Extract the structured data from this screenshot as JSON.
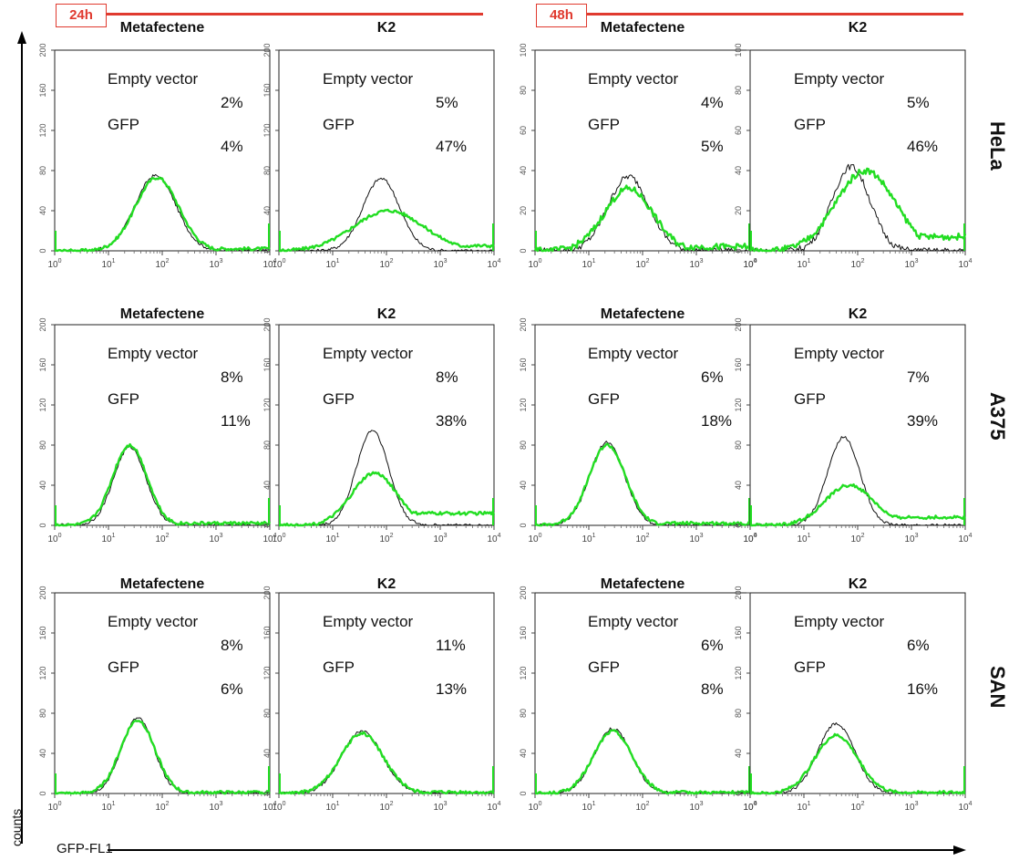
{
  "figure": {
    "time_labels": [
      "24h",
      "48h"
    ],
    "cell_lines": [
      "HeLa",
      "A375",
      "SAN"
    ],
    "y_axis_label": "counts",
    "x_axis_label": "GFP-FL1",
    "colors": {
      "gfp": "#22dd22",
      "empty": "#111111",
      "accent": "#e03a2f"
    }
  },
  "chart_data": [
    {
      "type": "line",
      "title": "Metafectene",
      "cell_line": "HeLa",
      "time": "24h",
      "xscale": "log",
      "xlim": [
        1,
        10000
      ],
      "ylim": [
        0,
        200
      ],
      "yticks": [
        0,
        40,
        80,
        120,
        160,
        200
      ],
      "series": [
        {
          "name": "Empty vector",
          "peak_x": 75,
          "peak_y": 75,
          "width": 0.38,
          "tail": 0
        },
        {
          "name": "GFP",
          "peak_x": 80,
          "peak_y": 73,
          "width": 0.4,
          "tail": 2
        }
      ],
      "labels": {
        "empty_vector": "Empty vector",
        "gfp": "GFP",
        "empty_pct": "2%",
        "gfp_pct": "4%"
      }
    },
    {
      "type": "line",
      "title": "K2",
      "cell_line": "HeLa",
      "time": "24h",
      "xscale": "log",
      "xlim": [
        1,
        10000
      ],
      "ylim": [
        0,
        200
      ],
      "yticks": [
        0,
        40,
        80,
        120,
        160,
        200
      ],
      "series": [
        {
          "name": "Empty vector",
          "peak_x": 80,
          "peak_y": 72,
          "width": 0.34,
          "tail": 0
        },
        {
          "name": "GFP",
          "peak_x": 110,
          "peak_y": 40,
          "width": 0.65,
          "tail": 5
        }
      ],
      "labels": {
        "empty_vector": "Empty vector",
        "gfp": "GFP",
        "empty_pct": "5%",
        "gfp_pct": "47%"
      }
    },
    {
      "type": "line",
      "title": "Metafectene",
      "cell_line": "HeLa",
      "time": "48h",
      "xscale": "log",
      "xlim": [
        1,
        10000
      ],
      "ylim": [
        0,
        100
      ],
      "yticks": [
        0,
        20,
        40,
        60,
        80,
        100
      ],
      "series": [
        {
          "name": "Empty vector",
          "peak_x": 55,
          "peak_y": 37,
          "width": 0.38,
          "tail": 0
        },
        {
          "name": "GFP",
          "peak_x": 55,
          "peak_y": 31,
          "width": 0.45,
          "tail": 2
        }
      ],
      "labels": {
        "empty_vector": "Empty vector",
        "gfp": "GFP",
        "empty_pct": "4%",
        "gfp_pct": "5%"
      }
    },
    {
      "type": "line",
      "title": "K2",
      "cell_line": "HeLa",
      "time": "48h",
      "xscale": "log",
      "xlim": [
        1,
        10000
      ],
      "ylim": [
        0,
        100
      ],
      "yticks": [
        0,
        20,
        40,
        60,
        80,
        100
      ],
      "series": [
        {
          "name": "Empty vector",
          "peak_x": 75,
          "peak_y": 42,
          "width": 0.35,
          "tail": 0
        },
        {
          "name": "GFP",
          "peak_x": 140,
          "peak_y": 40,
          "width": 0.55,
          "tail": 7
        }
      ],
      "labels": {
        "empty_vector": "Empty vector",
        "gfp": "GFP",
        "empty_pct": "5%",
        "gfp_pct": "46%"
      }
    },
    {
      "type": "line",
      "title": "Metafectene",
      "cell_line": "A375",
      "time": "24h",
      "xscale": "log",
      "xlim": [
        1,
        10000
      ],
      "ylim": [
        0,
        200
      ],
      "yticks": [
        0,
        40,
        80,
        120,
        160,
        200
      ],
      "series": [
        {
          "name": "Empty vector",
          "peak_x": 25,
          "peak_y": 78,
          "width": 0.3,
          "tail": 0
        },
        {
          "name": "GFP",
          "peak_x": 25,
          "peak_y": 80,
          "width": 0.32,
          "tail": 2
        }
      ],
      "labels": {
        "empty_vector": "Empty vector",
        "gfp": "GFP",
        "empty_pct": "8%",
        "gfp_pct": "11%"
      }
    },
    {
      "type": "line",
      "title": "K2",
      "cell_line": "A375",
      "time": "24h",
      "xscale": "log",
      "xlim": [
        1,
        10000
      ],
      "ylim": [
        0,
        200
      ],
      "yticks": [
        0,
        40,
        80,
        120,
        160,
        200
      ],
      "series": [
        {
          "name": "Empty vector",
          "peak_x": 55,
          "peak_y": 95,
          "width": 0.3,
          "tail": 0
        },
        {
          "name": "GFP",
          "peak_x": 60,
          "peak_y": 52,
          "width": 0.42,
          "tail": 12
        }
      ],
      "labels": {
        "empty_vector": "Empty vector",
        "gfp": "GFP",
        "empty_pct": "8%",
        "gfp_pct": "38%"
      }
    },
    {
      "type": "line",
      "title": "Metafectene",
      "cell_line": "A375",
      "time": "48h",
      "xscale": "log",
      "xlim": [
        1,
        10000
      ],
      "ylim": [
        0,
        200
      ],
      "yticks": [
        0,
        40,
        80,
        120,
        160,
        200
      ],
      "series": [
        {
          "name": "Empty vector",
          "peak_x": 22,
          "peak_y": 83,
          "width": 0.32,
          "tail": 0
        },
        {
          "name": "GFP",
          "peak_x": 22,
          "peak_y": 80,
          "width": 0.34,
          "tail": 2
        }
      ],
      "labels": {
        "empty_vector": "Empty vector",
        "gfp": "GFP",
        "empty_pct": "6%",
        "gfp_pct": "18%"
      }
    },
    {
      "type": "line",
      "title": "K2",
      "cell_line": "A375",
      "time": "48h",
      "xscale": "log",
      "xlim": [
        1,
        10000
      ],
      "ylim": [
        0,
        200
      ],
      "yticks": [
        0,
        40,
        80,
        120,
        160,
        200
      ],
      "series": [
        {
          "name": "Empty vector",
          "peak_x": 55,
          "peak_y": 88,
          "width": 0.3,
          "tail": 0
        },
        {
          "name": "GFP",
          "peak_x": 70,
          "peak_y": 40,
          "width": 0.45,
          "tail": 8
        }
      ],
      "labels": {
        "empty_vector": "Empty vector",
        "gfp": "GFP",
        "empty_pct": "7%",
        "gfp_pct": "39%"
      }
    },
    {
      "type": "line",
      "title": "Metafectene",
      "cell_line": "SAN",
      "time": "24h",
      "xscale": "log",
      "xlim": [
        1,
        10000
      ],
      "ylim": [
        0,
        200
      ],
      "yticks": [
        0,
        40,
        80,
        120,
        160,
        200
      ],
      "series": [
        {
          "name": "Empty vector",
          "peak_x": 35,
          "peak_y": 75,
          "width": 0.3,
          "tail": 0
        },
        {
          "name": "GFP",
          "peak_x": 35,
          "peak_y": 73,
          "width": 0.32,
          "tail": 1
        }
      ],
      "labels": {
        "empty_vector": "Empty vector",
        "gfp": "GFP",
        "empty_pct": "8%",
        "gfp_pct": "6%"
      }
    },
    {
      "type": "line",
      "title": "K2",
      "cell_line": "SAN",
      "time": "24h",
      "xscale": "log",
      "xlim": [
        1,
        10000
      ],
      "ylim": [
        0,
        200
      ],
      "yticks": [
        0,
        40,
        80,
        120,
        160,
        200
      ],
      "series": [
        {
          "name": "Empty vector",
          "peak_x": 35,
          "peak_y": 62,
          "width": 0.38,
          "tail": 0
        },
        {
          "name": "GFP",
          "peak_x": 35,
          "peak_y": 60,
          "width": 0.4,
          "tail": 1
        }
      ],
      "labels": {
        "empty_vector": "Empty vector",
        "gfp": "GFP",
        "empty_pct": "11%",
        "gfp_pct": "13%"
      }
    },
    {
      "type": "line",
      "title": "Metafectene",
      "cell_line": "SAN",
      "time": "48h",
      "xscale": "log",
      "xlim": [
        1,
        10000
      ],
      "ylim": [
        0,
        200
      ],
      "yticks": [
        0,
        40,
        80,
        120,
        160,
        200
      ],
      "series": [
        {
          "name": "Empty vector",
          "peak_x": 28,
          "peak_y": 65,
          "width": 0.34,
          "tail": 0
        },
        {
          "name": "GFP",
          "peak_x": 28,
          "peak_y": 62,
          "width": 0.36,
          "tail": 1
        }
      ],
      "labels": {
        "empty_vector": "Empty vector",
        "gfp": "GFP",
        "empty_pct": "6%",
        "gfp_pct": "8%"
      }
    },
    {
      "type": "line",
      "title": "K2",
      "cell_line": "SAN",
      "time": "48h",
      "xscale": "log",
      "xlim": [
        1,
        10000
      ],
      "ylim": [
        0,
        200
      ],
      "yticks": [
        0,
        40,
        80,
        120,
        160,
        200
      ],
      "series": [
        {
          "name": "Empty vector",
          "peak_x": 40,
          "peak_y": 70,
          "width": 0.34,
          "tail": 0
        },
        {
          "name": "GFP",
          "peak_x": 40,
          "peak_y": 58,
          "width": 0.4,
          "tail": 1
        }
      ],
      "labels": {
        "empty_vector": "Empty vector",
        "gfp": "GFP",
        "empty_pct": "6%",
        "gfp_pct": "16%"
      }
    }
  ]
}
